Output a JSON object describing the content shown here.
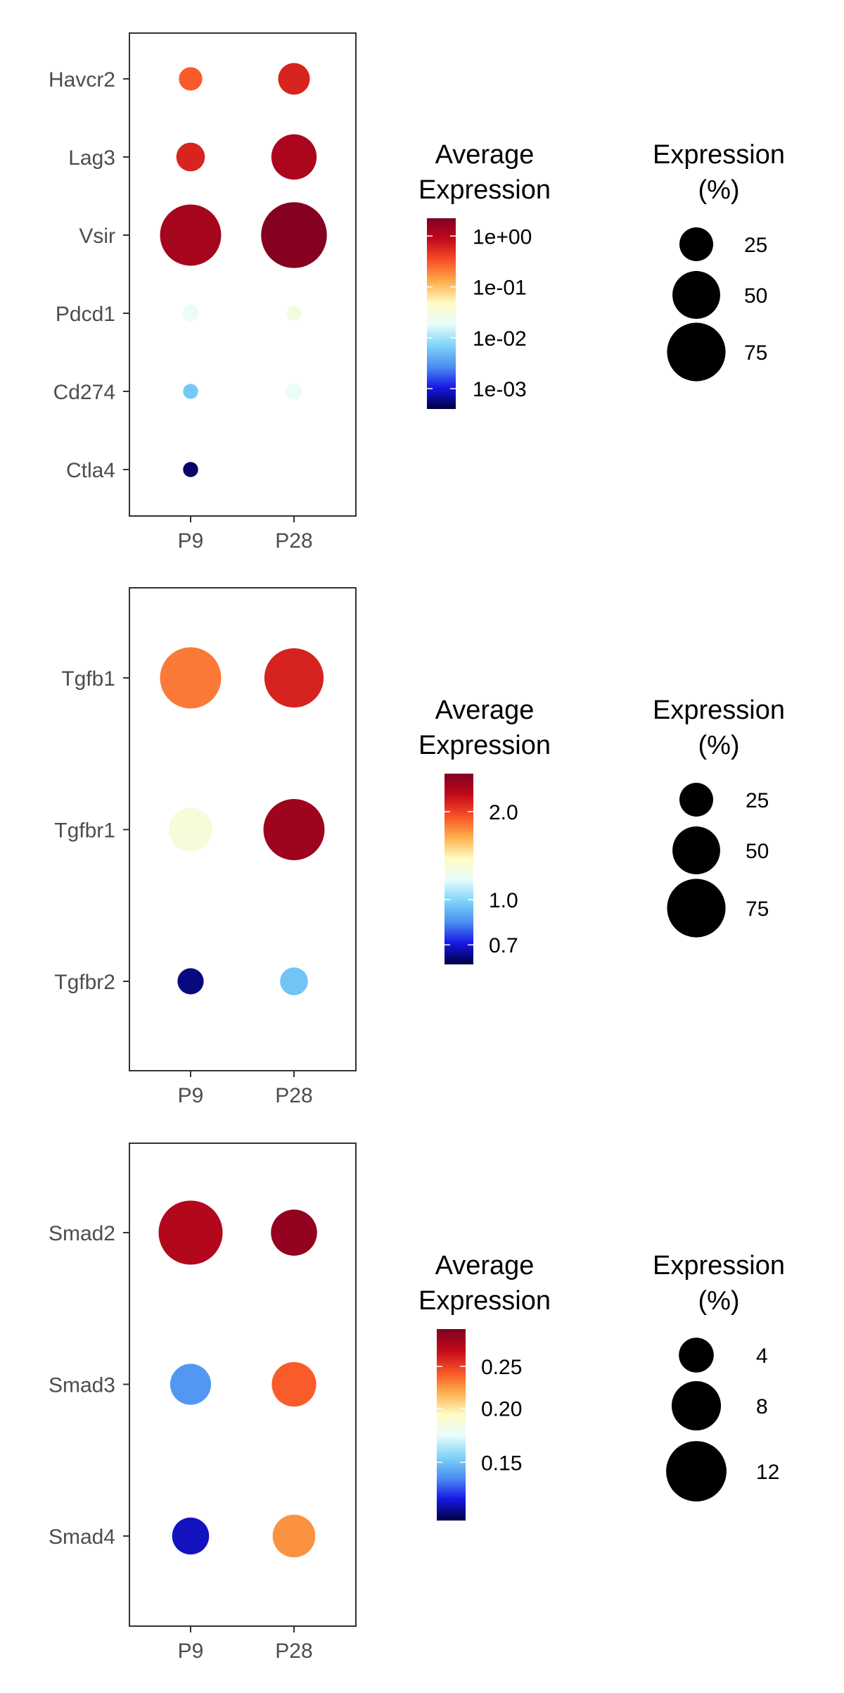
{
  "chart_data": [
    {
      "type": "scatter",
      "subtype": "dotplot",
      "categories": [
        "P9",
        "P28"
      ],
      "genes": [
        "Havcr2",
        "Lag3",
        "Vsir",
        "Pdcd1",
        "Cd274",
        "Ctla4"
      ],
      "color_legend": {
        "title_line1": "Average",
        "title_line2": "Expression",
        "scale": "log",
        "ticks": [
          "1e+00",
          "1e-01",
          "1e-02",
          "1e-03"
        ]
      },
      "size_legend": {
        "title_line1": "Expression",
        "title_line2": "(%)",
        "ticks": [
          "25",
          "50",
          "75"
        ]
      },
      "points": [
        {
          "gene": "Havcr2",
          "group": "P9",
          "pct": 12,
          "avg_exp": 0.3
        },
        {
          "gene": "Havcr2",
          "group": "P28",
          "pct": 22,
          "avg_exp": 0.6
        },
        {
          "gene": "Lag3",
          "group": "P9",
          "pct": 18,
          "avg_exp": 0.6
        },
        {
          "gene": "Lag3",
          "group": "P28",
          "pct": 45,
          "avg_exp": 1.2
        },
        {
          "gene": "Vsir",
          "group": "P9",
          "pct": 82,
          "avg_exp": 1.3
        },
        {
          "gene": "Vsir",
          "group": "P28",
          "pct": 95,
          "avg_exp": 2.0
        },
        {
          "gene": "Pdcd1",
          "group": "P9",
          "pct": 6,
          "avg_exp": 0.02
        },
        {
          "gene": "Pdcd1",
          "group": "P28",
          "pct": 5,
          "avg_exp": 0.03
        },
        {
          "gene": "Cd274",
          "group": "P9",
          "pct": 5,
          "avg_exp": 0.006
        },
        {
          "gene": "Cd274",
          "group": "P28",
          "pct": 6,
          "avg_exp": 0.02
        },
        {
          "gene": "Ctla4",
          "group": "P9",
          "pct": 5,
          "avg_exp": 0.0005
        }
      ]
    },
    {
      "type": "scatter",
      "subtype": "dotplot",
      "categories": [
        "P9",
        "P28"
      ],
      "genes": [
        "Tgfb1",
        "Tgfbr1",
        "Tgfbr2"
      ],
      "color_legend": {
        "title_line1": "Average",
        "title_line2": "Expression",
        "scale": "log",
        "ticks": [
          "2.0",
          "1.0",
          "0.7"
        ]
      },
      "size_legend": {
        "title_line1": "Expression",
        "title_line2": "(%)",
        "ticks": [
          "25",
          "50",
          "75"
        ]
      },
      "points": [
        {
          "gene": "Tgfb1",
          "group": "P9",
          "pct": 82,
          "avg_exp": 1.8
        },
        {
          "gene": "Tgfb1",
          "group": "P28",
          "pct": 77,
          "avg_exp": 2.15
        },
        {
          "gene": "Tgfbr1",
          "group": "P9",
          "pct": 42,
          "avg_exp": 1.3
        },
        {
          "gene": "Tgfbr1",
          "group": "P28",
          "pct": 82,
          "avg_exp": 2.5
        },
        {
          "gene": "Tgfbr2",
          "group": "P9",
          "pct": 15,
          "avg_exp": 0.64
        },
        {
          "gene": "Tgfbr2",
          "group": "P28",
          "pct": 17,
          "avg_exp": 0.95
        }
      ]
    },
    {
      "type": "scatter",
      "subtype": "dotplot",
      "categories": [
        "P9",
        "P28"
      ],
      "genes": [
        "Smad2",
        "Smad3",
        "Smad4"
      ],
      "color_legend": {
        "title_line1": "Average",
        "title_line2": "Expression",
        "scale": "log",
        "ticks": [
          "0.25",
          "0.20",
          "0.15"
        ]
      },
      "size_legend": {
        "title_line1": "Expression",
        "title_line2": "(%)",
        "ticks": [
          "4",
          "8",
          "12"
        ]
      },
      "points": [
        {
          "gene": "Smad2",
          "group": "P9",
          "pct": 13.5,
          "avg_exp": 0.28
        },
        {
          "gene": "Smad2",
          "group": "P28",
          "pct": 7,
          "avg_exp": 0.295
        },
        {
          "gene": "Smad3",
          "group": "P9",
          "pct": 5.5,
          "avg_exp": 0.14
        },
        {
          "gene": "Smad3",
          "group": "P28",
          "pct": 6.5,
          "avg_exp": 0.24
        },
        {
          "gene": "Smad4",
          "group": "P9",
          "pct": 4.5,
          "avg_exp": 0.12
        },
        {
          "gene": "Smad4",
          "group": "P28",
          "pct": 6,
          "avg_exp": 0.225
        }
      ]
    }
  ],
  "colors": {
    "scale": [
      "#00003f",
      "#1717e5",
      "#4b8ff2",
      "#7fd4f8",
      "#e8fdfc",
      "#fffbc4",
      "#fdb04c",
      "#f85126",
      "#c4091b",
      "#7e0021"
    ],
    "dot_legend": "#000000",
    "axis": "#333333",
    "tick_label": "#4d4d4d"
  }
}
